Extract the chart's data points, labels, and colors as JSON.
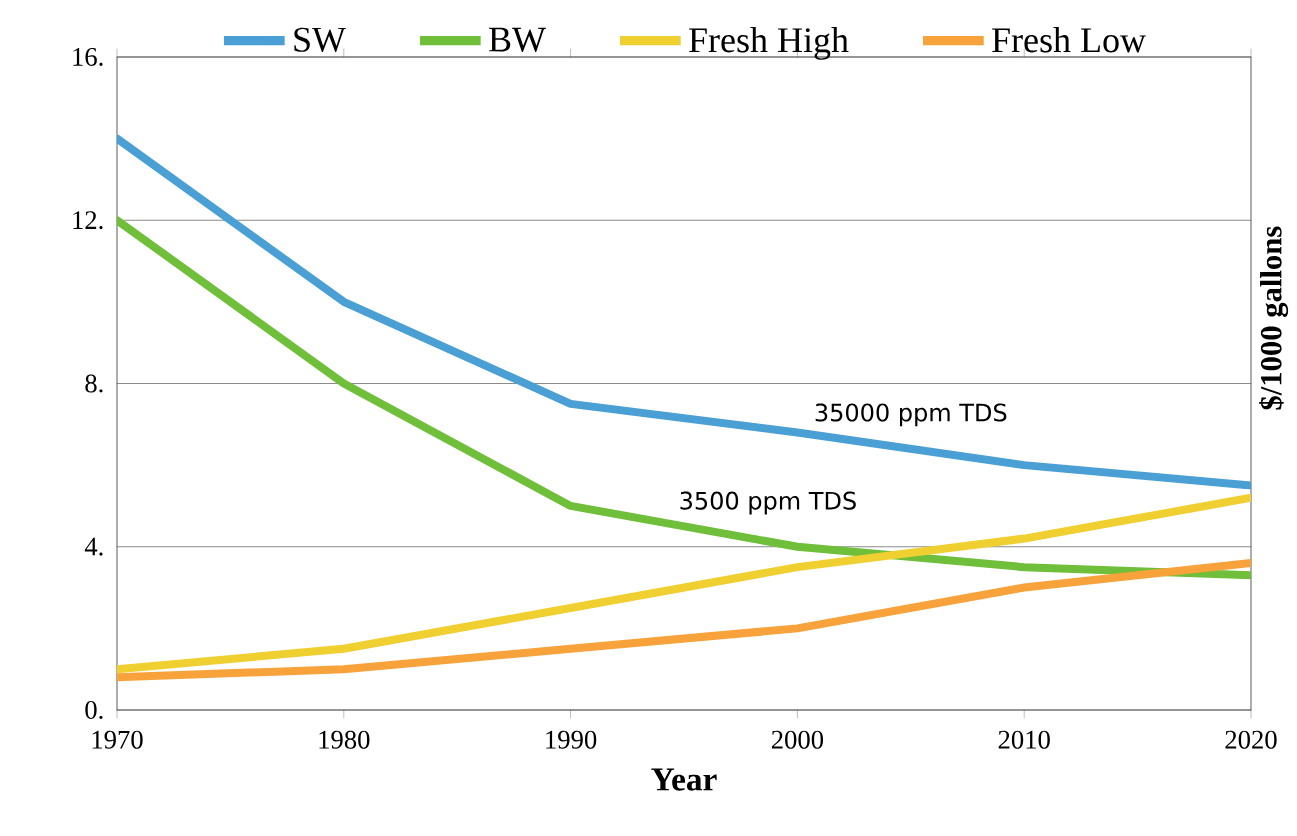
{
  "chart_data": {
    "type": "line",
    "xlabel": "Year",
    "ylabel": "$/1000 gallons",
    "x": [
      1970,
      1980,
      1990,
      2000,
      2010,
      2020
    ],
    "series": [
      {
        "name": "SW",
        "color": "#4a9fd4",
        "values": [
          14,
          10,
          7.5,
          6.8,
          6,
          5.5
        ]
      },
      {
        "name": "BW",
        "color": "#6fbf3a",
        "values": [
          12,
          8,
          5,
          4,
          3.5,
          3.3
        ]
      },
      {
        "name": "Fresh High",
        "color": "#f0cf30",
        "values": [
          1.0,
          1.5,
          2.5,
          3.5,
          4.2,
          5.2
        ]
      },
      {
        "name": "Fresh Low",
        "color": "#f7a23a",
        "values": [
          0.8,
          1.0,
          1.5,
          2.0,
          3.0,
          3.6
        ]
      }
    ],
    "xlim": [
      1970,
      2020
    ],
    "xticks": [
      1970,
      1980,
      1990,
      2000,
      2010,
      2020
    ],
    "ylim": [
      0,
      16
    ],
    "yticks": [
      {
        "value": 0,
        "label": "0."
      },
      {
        "value": 4,
        "label": "4."
      },
      {
        "value": 8,
        "label": "8."
      },
      {
        "value": 12,
        "label": "12."
      },
      {
        "value": 16,
        "label": "16."
      }
    ],
    "annotations": [
      "35000 ppm TDS",
      "3500 ppm TDS"
    ],
    "grid": "y",
    "legend": "top",
    "marker": "none",
    "line_style": "solid"
  }
}
